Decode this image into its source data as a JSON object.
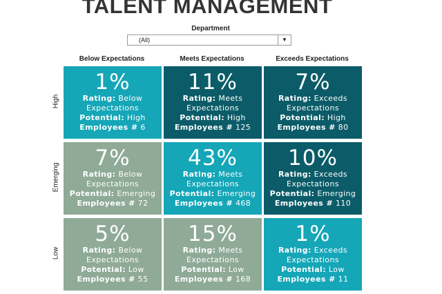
{
  "title": "TALENT MANAGEMENT",
  "filter": {
    "label": "Department",
    "value": "(All)",
    "arrow_icon": "dropdown-arrow-icon"
  },
  "columns": [
    "Below Expectations",
    "Meets Expectations",
    "Exceeds Expectations"
  ],
  "rows": [
    "High",
    "Emerging",
    "Low"
  ],
  "labels": {
    "rating": "Rating:",
    "potential": "Potential:",
    "employees": "Employees #"
  },
  "colors": {
    "light_teal": "#15a6b8",
    "dark_teal": "#0b5c68",
    "sage": "#8faa97"
  },
  "cells": [
    [
      {
        "pct": "1%",
        "rating_1": "Below",
        "rating_2": "Expectations",
        "potential": "High",
        "employees": "6"
      },
      {
        "pct": "11%",
        "rating_1": "Meets",
        "rating_2": "Expectations",
        "potential": "High",
        "employees": "125"
      },
      {
        "pct": "7%",
        "rating_1": "Exceeds",
        "rating_2": "Expectations",
        "potential": "High",
        "employees": "80"
      }
    ],
    [
      {
        "pct": "7%",
        "rating_1": "Below",
        "rating_2": "Expectations",
        "potential": "Emerging",
        "employees": "72"
      },
      {
        "pct": "43%",
        "rating_1": "Meets",
        "rating_2": "Expectations",
        "potential": "Emerging",
        "employees": "468"
      },
      {
        "pct": "10%",
        "rating_1": "Exceeds",
        "rating_2": "Expectations",
        "potential": "Emerging",
        "employees": "110"
      }
    ],
    [
      {
        "pct": "5%",
        "rating_1": "Below",
        "rating_2": "Expectations",
        "potential": "Low",
        "employees": "55"
      },
      {
        "pct": "15%",
        "rating_1": "Meets",
        "rating_2": "Expectations",
        "potential": "Low",
        "employees": "168"
      },
      {
        "pct": "1%",
        "rating_1": "Exceeds",
        "rating_2": "Expectations",
        "potential": "Low",
        "employees": "11"
      }
    ]
  ]
}
